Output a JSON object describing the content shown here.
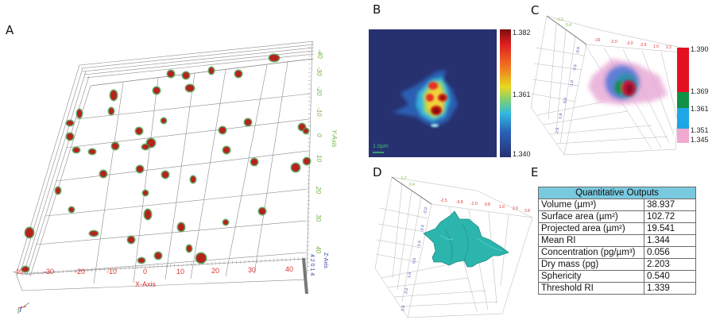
{
  "panels": {
    "a": {
      "label": "A",
      "x_axis": {
        "title": "X-Axis",
        "ticks": [
          "-40",
          "-30",
          "-20",
          "-10",
          "0",
          "10",
          "20",
          "30",
          "40"
        ]
      },
      "y_axis": {
        "title": "Y-Axis",
        "ticks": [
          "-40",
          "-30",
          "-20",
          "-10",
          "0",
          "10",
          "20",
          "30",
          "40"
        ]
      },
      "z_axis": {
        "title": "Z-Axis",
        "ticks": "4 2 0 1 4"
      },
      "orientation_glyph": "xyz-axes-icon"
    },
    "b": {
      "label": "B",
      "scale_bar": "1.0µm",
      "colorbar": {
        "max": "1.382",
        "mid": "1.361",
        "min": "1.340"
      }
    },
    "c": {
      "label": "C",
      "colorbar": {
        "levels": [
          "1.390",
          "1.369",
          "1.361",
          "1.351",
          "1.345"
        ],
        "colors": [
          "#e3101f",
          "#0f9148",
          "#1ea6e6",
          "#f1a9cf"
        ]
      }
    },
    "d": {
      "label": "D",
      "surface_color": "#2cb5ad"
    },
    "e": {
      "label": "E",
      "table": {
        "header": "Quantitative Outputs",
        "rows": [
          {
            "name": "Volume (µm³)",
            "value": "38.937"
          },
          {
            "name": "Surface area (µm²)",
            "value": "102.72"
          },
          {
            "name": "Projected area (µm²)",
            "value": "19.541"
          },
          {
            "name": "Mean RI",
            "value": "1.344"
          },
          {
            "name": "Concentration (pg/µm³)",
            "value": "0.056"
          },
          {
            "name": "Dry mass (pg)",
            "value": "2.203"
          },
          {
            "name": "Sphericity",
            "value": "0.540"
          },
          {
            "name": "Threshold RI",
            "value": "1.339"
          }
        ]
      }
    }
  }
}
